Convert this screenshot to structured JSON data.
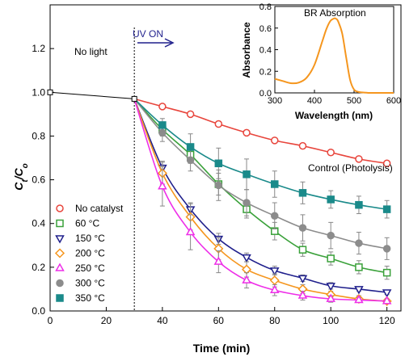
{
  "chart_data": [
    {
      "type": "line",
      "xlabel": "Time (min)",
      "ylabel_main": "C",
      "ylabel_sub1": "t",
      "ylabel_mid": "/C",
      "ylabel_sub2": "o",
      "xlim": [
        0,
        125
      ],
      "ylim": [
        0,
        1.4
      ],
      "xticks": [
        "0",
        "20",
        "40",
        "60",
        "80",
        "100",
        "120"
      ],
      "xtick_values": [
        0,
        20,
        40,
        60,
        80,
        100,
        120
      ],
      "yticks": [
        "0.0",
        "0.2",
        "0.4",
        "0.6",
        "0.8",
        "1.0",
        "1.2"
      ],
      "ytick_values": [
        0,
        0.2,
        0.4,
        0.6,
        0.8,
        1.0,
        1.2
      ],
      "annotations": {
        "no_light": "No light",
        "uv_on": "UV ON",
        "control": "Control (Photolysis)"
      },
      "dark_phase": {
        "x": [
          0,
          30
        ],
        "y": [
          1.0,
          0.97
        ]
      },
      "series": [
        {
          "name": "No catalyst",
          "color": "#e8453c",
          "marker": "circle",
          "x": [
            40,
            50,
            60,
            70,
            80,
            90,
            100,
            110,
            120
          ],
          "y": [
            0.935,
            0.9,
            0.855,
            0.815,
            0.78,
            0.755,
            0.725,
            0.695,
            0.675
          ],
          "err": [
            0,
            0,
            0,
            0,
            0,
            0,
            0,
            0,
            0
          ]
        },
        {
          "name": "60 °C",
          "color": "#3aa13a",
          "marker": "square",
          "x": [
            40,
            50,
            60,
            70,
            80,
            90,
            100,
            110,
            120
          ],
          "y": [
            0.83,
            0.715,
            0.58,
            0.465,
            0.365,
            0.28,
            0.24,
            0.2,
            0.175
          ],
          "err": [
            0.03,
            0.04,
            0.05,
            0.04,
            0.04,
            0.03,
            0.03,
            0.03,
            0.03
          ]
        },
        {
          "name": "150 °C",
          "color": "#1f1f8c",
          "marker": "triangle-down",
          "x": [
            40,
            50,
            60,
            70,
            80,
            90,
            100,
            110,
            120
          ],
          "y": [
            0.655,
            0.465,
            0.33,
            0.245,
            0.185,
            0.15,
            0.115,
            0.1,
            0.085
          ],
          "err": [
            0.03,
            0.03,
            0.025,
            0.02,
            0.02,
            0.015,
            0.015,
            0.01,
            0.01
          ]
        },
        {
          "name": "200 °C",
          "color": "#f5961e",
          "marker": "diamond",
          "x": [
            40,
            50,
            60,
            70,
            80,
            90,
            100,
            110,
            120
          ],
          "y": [
            0.63,
            0.43,
            0.285,
            0.19,
            0.14,
            0.1,
            0.075,
            0.055,
            0.045
          ],
          "err": [
            0.05,
            0.06,
            0.05,
            0.035,
            0.03,
            0.02,
            0.015,
            0.015,
            0.01
          ]
        },
        {
          "name": "250 °C",
          "color": "#ee2ee8",
          "marker": "triangle-up",
          "x": [
            40,
            50,
            60,
            70,
            80,
            90,
            100,
            110,
            120
          ],
          "y": [
            0.57,
            0.36,
            0.225,
            0.14,
            0.095,
            0.07,
            0.055,
            0.05,
            0.045
          ],
          "err": [
            0.09,
            0.08,
            0.05,
            0.035,
            0.025,
            0.02,
            0.015,
            0.01,
            0.01
          ]
        },
        {
          "name": "300 °C",
          "color": "#8c8c8c",
          "marker": "filled-circle",
          "x": [
            40,
            50,
            60,
            70,
            80,
            90,
            100,
            110,
            120
          ],
          "y": [
            0.815,
            0.69,
            0.575,
            0.495,
            0.435,
            0.38,
            0.345,
            0.31,
            0.285
          ],
          "err": [
            0.04,
            0.05,
            0.07,
            0.06,
            0.06,
            0.06,
            0.06,
            0.05,
            0.05
          ]
        },
        {
          "name": "350 °C",
          "color": "#1a8a8a",
          "marker": "filled-square",
          "x": [
            40,
            50,
            60,
            70,
            80,
            90,
            100,
            110,
            120
          ],
          "y": [
            0.85,
            0.75,
            0.675,
            0.625,
            0.58,
            0.54,
            0.51,
            0.485,
            0.465
          ],
          "err": [
            0.03,
            0.06,
            0.07,
            0.07,
            0.06,
            0.05,
            0.04,
            0.04,
            0.04
          ]
        }
      ],
      "legend_position": "bottom-left"
    },
    {
      "type": "line",
      "title": "BR Absorption",
      "xlabel": "Wavelength (nm)",
      "ylabel": "Absorbance",
      "xlim": [
        300,
        600
      ],
      "ylim": [
        0,
        0.8
      ],
      "xticks": [
        "300",
        "400",
        "500",
        "600"
      ],
      "xtick_values": [
        300,
        400,
        500,
        600
      ],
      "yticks": [
        "0.0",
        "0.2",
        "0.4",
        "0.6",
        "0.8"
      ],
      "ytick_values": [
        0,
        0.2,
        0.4,
        0.6,
        0.8
      ],
      "series": [
        {
          "color": "#f5961e",
          "x": [
            300,
            320,
            340,
            360,
            380,
            400,
            420,
            430,
            440,
            450,
            455,
            460,
            470,
            480,
            490,
            500,
            510,
            520,
            540,
            560,
            580,
            600
          ],
          "y": [
            0.13,
            0.11,
            0.09,
            0.095,
            0.14,
            0.26,
            0.48,
            0.59,
            0.665,
            0.69,
            0.685,
            0.66,
            0.55,
            0.33,
            0.12,
            0.03,
            0.01,
            0.005,
            0,
            0,
            0,
            0
          ]
        }
      ]
    }
  ]
}
